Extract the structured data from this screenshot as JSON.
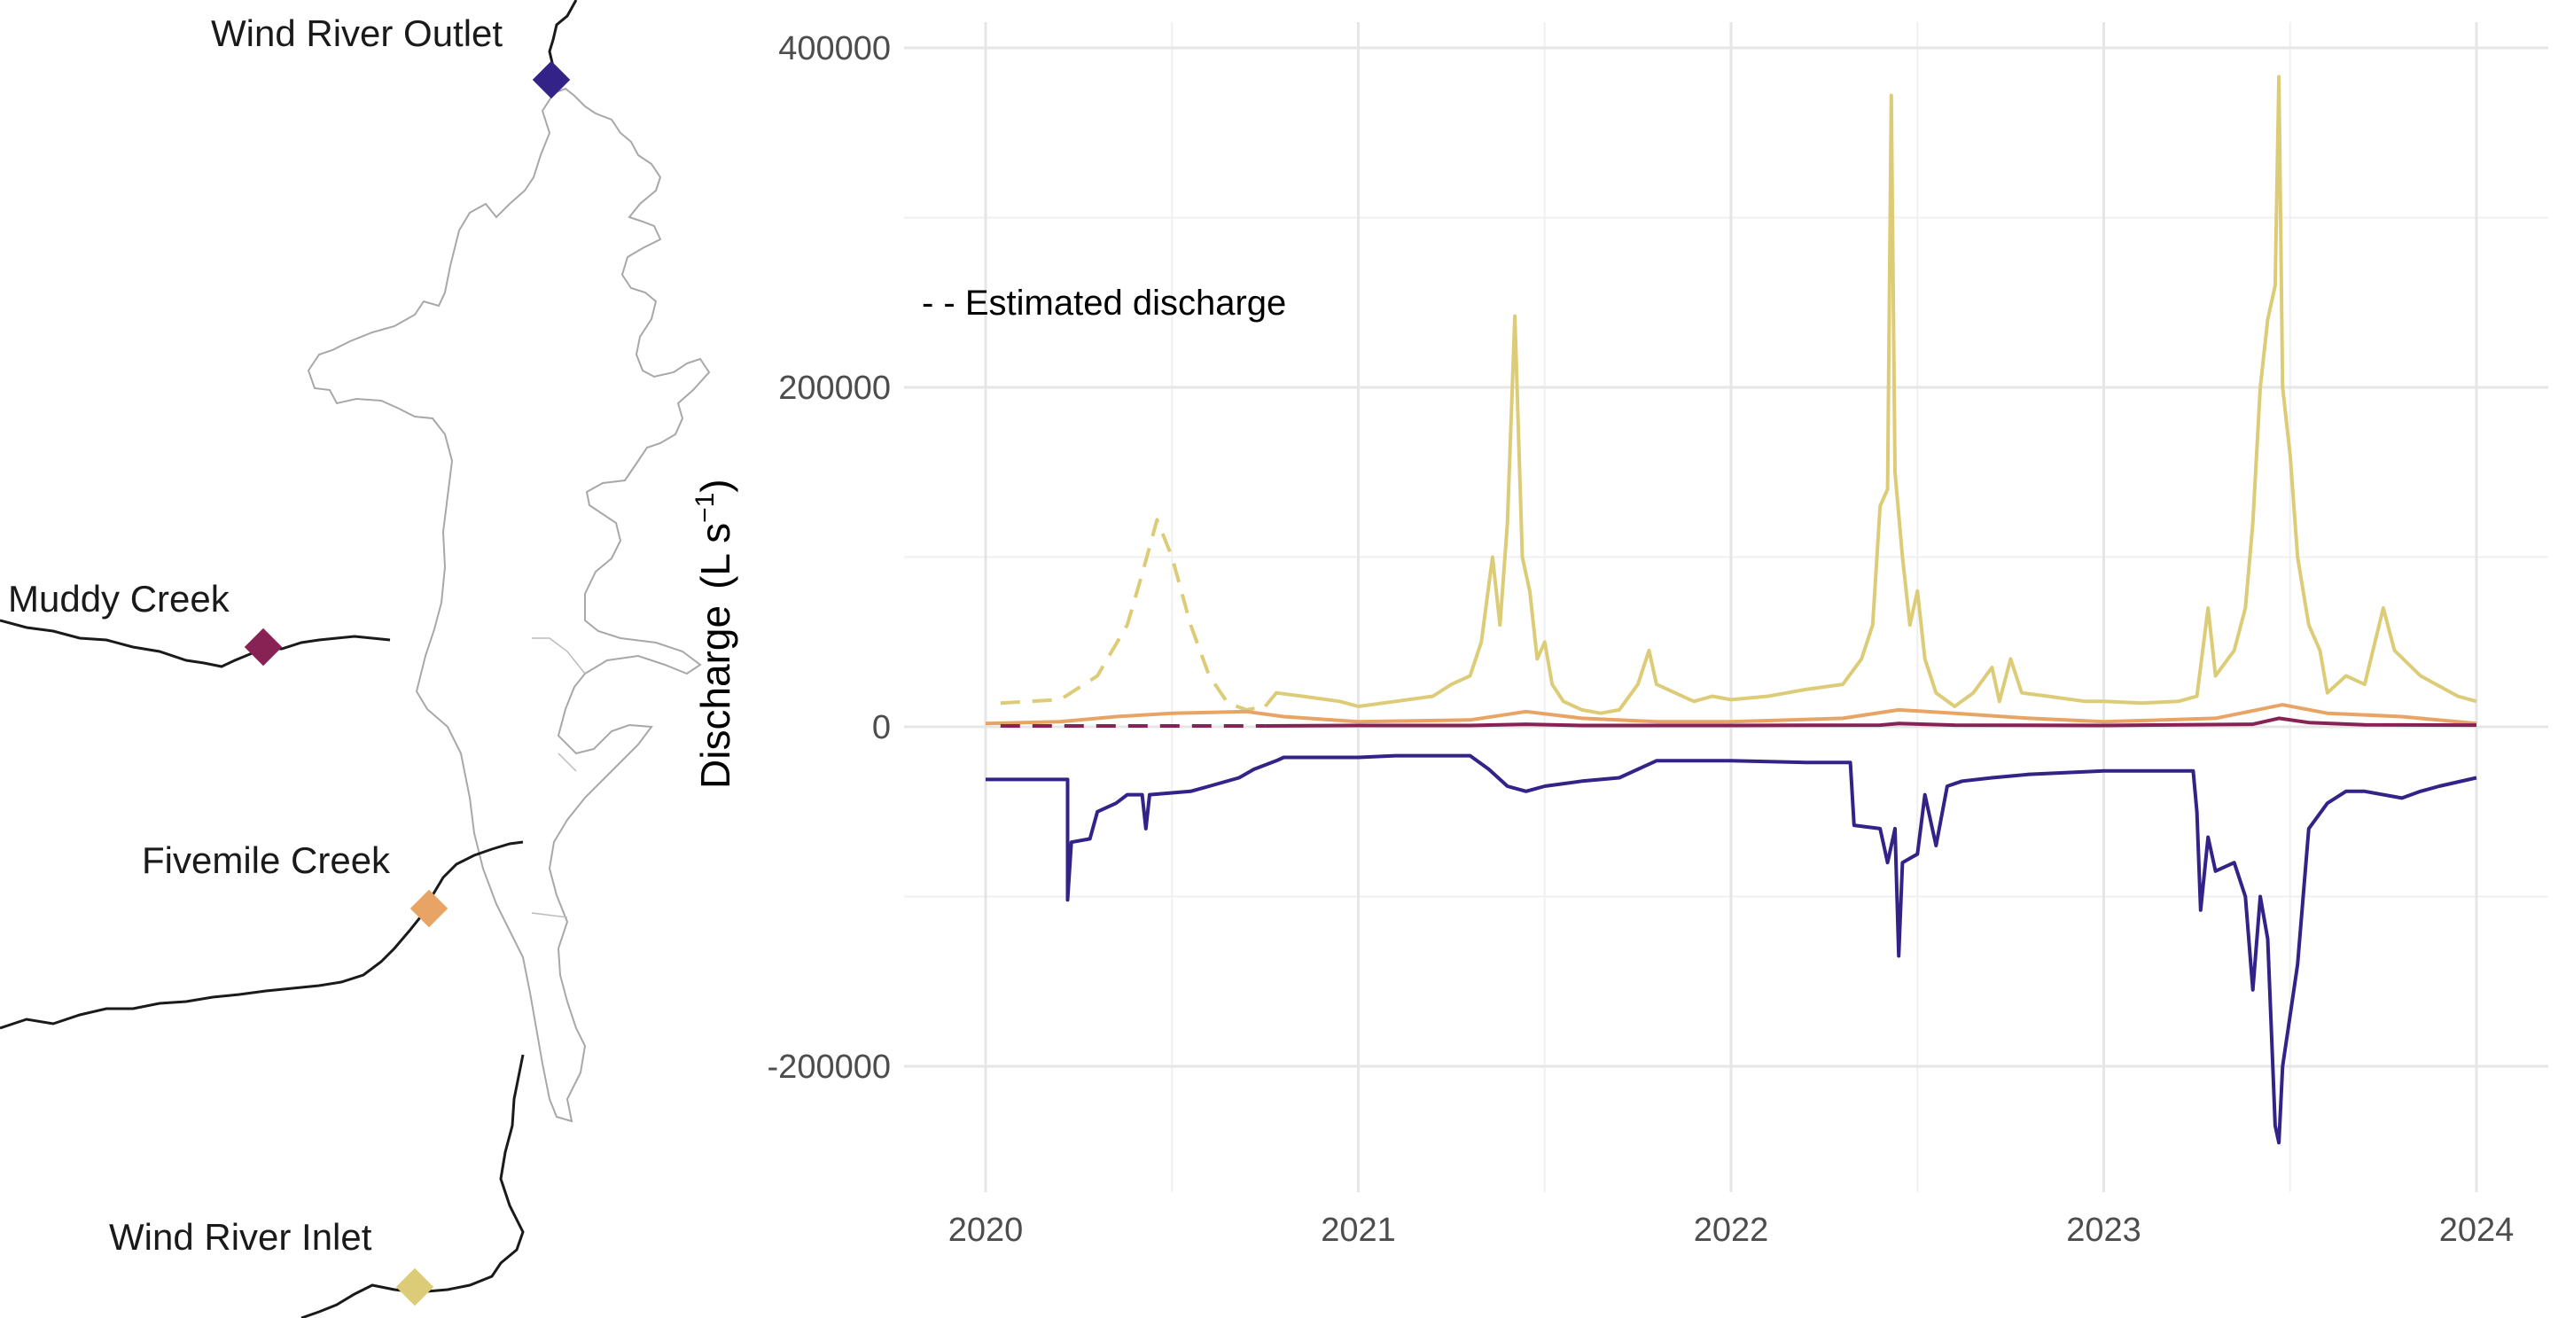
{
  "map": {
    "sites": [
      {
        "name": "Wind River Outlet",
        "color": "#332288"
      },
      {
        "name": "Muddy Creek",
        "color": "#882255"
      },
      {
        "name": "Fivemile Creek",
        "color": "#E8A465"
      },
      {
        "name": "Wind River Inlet",
        "color": "#DDCC77"
      }
    ],
    "icons": {
      "site_marker": "diamond-icon"
    }
  },
  "chart_data": {
    "type": "line",
    "title": "",
    "xlabel": "",
    "ylabel": "Discharge",
    "ylabel_unit_base": "(L s",
    "ylabel_unit_exp": "−1",
    "ylabel_unit_close": ")",
    "annotation": "- - Estimated discharge",
    "x_ticks": [
      "2020",
      "2021",
      "2022",
      "2023",
      "2024"
    ],
    "y_ticks": [
      400000,
      200000,
      0,
      -200000
    ],
    "y_tick_labels": [
      "400000",
      "200000",
      "0",
      "-200000"
    ],
    "xlim": [
      2020.0,
      2024.1
    ],
    "ylim": [
      -275000,
      415000
    ],
    "grid": true,
    "series": [
      {
        "color": "#DDCC77",
        "style": "solid",
        "points": [
          [
            2020.75,
            12000
          ],
          [
            2020.78,
            20000
          ],
          [
            2020.85,
            18000
          ],
          [
            2020.95,
            15000
          ],
          [
            2021.0,
            12000
          ],
          [
            2021.1,
            15000
          ],
          [
            2021.2,
            18000
          ],
          [
            2021.25,
            25000
          ],
          [
            2021.3,
            30000
          ],
          [
            2021.33,
            50000
          ],
          [
            2021.36,
            100000
          ],
          [
            2021.38,
            60000
          ],
          [
            2021.4,
            120000
          ],
          [
            2021.42,
            242000
          ],
          [
            2021.44,
            100000
          ],
          [
            2021.46,
            80000
          ],
          [
            2021.48,
            40000
          ],
          [
            2021.5,
            50000
          ],
          [
            2021.52,
            25000
          ],
          [
            2021.55,
            15000
          ],
          [
            2021.6,
            10000
          ],
          [
            2021.65,
            8000
          ],
          [
            2021.7,
            10000
          ],
          [
            2021.75,
            25000
          ],
          [
            2021.78,
            45000
          ],
          [
            2021.8,
            25000
          ],
          [
            2021.85,
            20000
          ],
          [
            2021.9,
            15000
          ],
          [
            2021.95,
            18000
          ],
          [
            2022.0,
            16000
          ],
          [
            2022.1,
            18000
          ],
          [
            2022.2,
            22000
          ],
          [
            2022.3,
            25000
          ],
          [
            2022.35,
            40000
          ],
          [
            2022.38,
            60000
          ],
          [
            2022.4,
            130000
          ],
          [
            2022.42,
            140000
          ],
          [
            2022.43,
            372000
          ],
          [
            2022.44,
            150000
          ],
          [
            2022.46,
            100000
          ],
          [
            2022.48,
            60000
          ],
          [
            2022.5,
            80000
          ],
          [
            2022.52,
            40000
          ],
          [
            2022.55,
            20000
          ],
          [
            2022.6,
            12000
          ],
          [
            2022.65,
            20000
          ],
          [
            2022.7,
            35000
          ],
          [
            2022.72,
            15000
          ],
          [
            2022.75,
            40000
          ],
          [
            2022.78,
            20000
          ],
          [
            2022.85,
            18000
          ],
          [
            2022.95,
            15000
          ],
          [
            2023.0,
            15000
          ],
          [
            2023.1,
            14000
          ],
          [
            2023.2,
            15000
          ],
          [
            2023.25,
            18000
          ],
          [
            2023.28,
            70000
          ],
          [
            2023.3,
            30000
          ],
          [
            2023.35,
            45000
          ],
          [
            2023.38,
            70000
          ],
          [
            2023.4,
            120000
          ],
          [
            2023.42,
            200000
          ],
          [
            2023.44,
            240000
          ],
          [
            2023.46,
            260000
          ],
          [
            2023.47,
            383000
          ],
          [
            2023.48,
            200000
          ],
          [
            2023.5,
            160000
          ],
          [
            2023.52,
            100000
          ],
          [
            2023.55,
            60000
          ],
          [
            2023.58,
            45000
          ],
          [
            2023.6,
            20000
          ],
          [
            2023.65,
            30000
          ],
          [
            2023.7,
            25000
          ],
          [
            2023.75,
            70000
          ],
          [
            2023.78,
            45000
          ],
          [
            2023.85,
            30000
          ],
          [
            2023.95,
            18000
          ],
          [
            2024.0,
            15000
          ]
        ]
      },
      {
        "color": "#DDCC77",
        "style": "dashed",
        "points": [
          [
            2020.04,
            14000
          ],
          [
            2020.2,
            16000
          ],
          [
            2020.3,
            30000
          ],
          [
            2020.38,
            60000
          ],
          [
            2020.42,
            90000
          ],
          [
            2020.46,
            122000
          ],
          [
            2020.5,
            100000
          ],
          [
            2020.55,
            60000
          ],
          [
            2020.6,
            30000
          ],
          [
            2020.65,
            14000
          ],
          [
            2020.7,
            10000
          ],
          [
            2020.75,
            12000
          ]
        ]
      },
      {
        "color": "#E8A465",
        "style": "solid",
        "points": [
          [
            2020.0,
            2000
          ],
          [
            2020.2,
            3000
          ],
          [
            2020.35,
            6000
          ],
          [
            2020.5,
            8000
          ],
          [
            2020.7,
            9000
          ],
          [
            2020.8,
            6000
          ],
          [
            2021.0,
            3000
          ],
          [
            2021.3,
            4000
          ],
          [
            2021.45,
            9000
          ],
          [
            2021.6,
            5000
          ],
          [
            2021.8,
            3000
          ],
          [
            2022.0,
            3000
          ],
          [
            2022.3,
            5000
          ],
          [
            2022.45,
            10000
          ],
          [
            2022.6,
            8000
          ],
          [
            2022.8,
            5000
          ],
          [
            2023.0,
            3000
          ],
          [
            2023.3,
            5000
          ],
          [
            2023.48,
            13000
          ],
          [
            2023.6,
            8000
          ],
          [
            2023.8,
            6000
          ],
          [
            2024.0,
            2000
          ]
        ]
      },
      {
        "color": "#882255",
        "style": "solid",
        "points": [
          [
            2020.75,
            500
          ],
          [
            2021.0,
            800
          ],
          [
            2021.3,
            800
          ],
          [
            2021.45,
            1500
          ],
          [
            2021.6,
            800
          ],
          [
            2022.0,
            800
          ],
          [
            2022.4,
            1000
          ],
          [
            2022.45,
            2000
          ],
          [
            2022.6,
            1000
          ],
          [
            2023.0,
            800
          ],
          [
            2023.4,
            1500
          ],
          [
            2023.47,
            5000
          ],
          [
            2023.55,
            2500
          ],
          [
            2023.7,
            1200
          ],
          [
            2024.0,
            1000
          ]
        ]
      },
      {
        "color": "#882255",
        "style": "dashed",
        "points": [
          [
            2020.04,
            500
          ],
          [
            2020.75,
            500
          ]
        ]
      },
      {
        "color": "#332288",
        "style": "solid",
        "points": [
          [
            2020.0,
            -31000
          ],
          [
            2020.22,
            -31000
          ],
          [
            2020.22,
            -102000
          ],
          [
            2020.23,
            -68000
          ],
          [
            2020.28,
            -66000
          ],
          [
            2020.3,
            -50000
          ],
          [
            2020.35,
            -45000
          ],
          [
            2020.38,
            -40000
          ],
          [
            2020.42,
            -40000
          ],
          [
            2020.43,
            -60000
          ],
          [
            2020.44,
            -40000
          ],
          [
            2020.55,
            -38000
          ],
          [
            2020.6,
            -35000
          ],
          [
            2020.68,
            -30000
          ],
          [
            2020.72,
            -25000
          ],
          [
            2020.78,
            -20000
          ],
          [
            2020.8,
            -18000
          ],
          [
            2021.0,
            -18000
          ],
          [
            2021.1,
            -17000
          ],
          [
            2021.3,
            -17000
          ],
          [
            2021.35,
            -25000
          ],
          [
            2021.4,
            -35000
          ],
          [
            2021.45,
            -38000
          ],
          [
            2021.5,
            -35000
          ],
          [
            2021.6,
            -32000
          ],
          [
            2021.7,
            -30000
          ],
          [
            2021.8,
            -20000
          ],
          [
            2022.0,
            -20000
          ],
          [
            2022.2,
            -21000
          ],
          [
            2022.32,
            -21000
          ],
          [
            2022.33,
            -58000
          ],
          [
            2022.4,
            -60000
          ],
          [
            2022.42,
            -80000
          ],
          [
            2022.44,
            -60000
          ],
          [
            2022.45,
            -135000
          ],
          [
            2022.46,
            -80000
          ],
          [
            2022.5,
            -75000
          ],
          [
            2022.52,
            -40000
          ],
          [
            2022.55,
            -70000
          ],
          [
            2022.58,
            -35000
          ],
          [
            2022.62,
            -32000
          ],
          [
            2022.7,
            -30000
          ],
          [
            2022.8,
            -28000
          ],
          [
            2023.0,
            -26000
          ],
          [
            2023.2,
            -26000
          ],
          [
            2023.24,
            -26000
          ],
          [
            2023.25,
            -50000
          ],
          [
            2023.26,
            -108000
          ],
          [
            2023.28,
            -65000
          ],
          [
            2023.3,
            -85000
          ],
          [
            2023.35,
            -80000
          ],
          [
            2023.38,
            -100000
          ],
          [
            2023.4,
            -155000
          ],
          [
            2023.42,
            -100000
          ],
          [
            2023.44,
            -125000
          ],
          [
            2023.46,
            -235000
          ],
          [
            2023.47,
            -245000
          ],
          [
            2023.48,
            -200000
          ],
          [
            2023.5,
            -170000
          ],
          [
            2023.52,
            -140000
          ],
          [
            2023.55,
            -60000
          ],
          [
            2023.6,
            -45000
          ],
          [
            2023.65,
            -38000
          ],
          [
            2023.7,
            -38000
          ],
          [
            2023.8,
            -42000
          ],
          [
            2023.85,
            -38000
          ],
          [
            2023.9,
            -35000
          ],
          [
            2024.0,
            -30000
          ]
        ]
      }
    ]
  }
}
